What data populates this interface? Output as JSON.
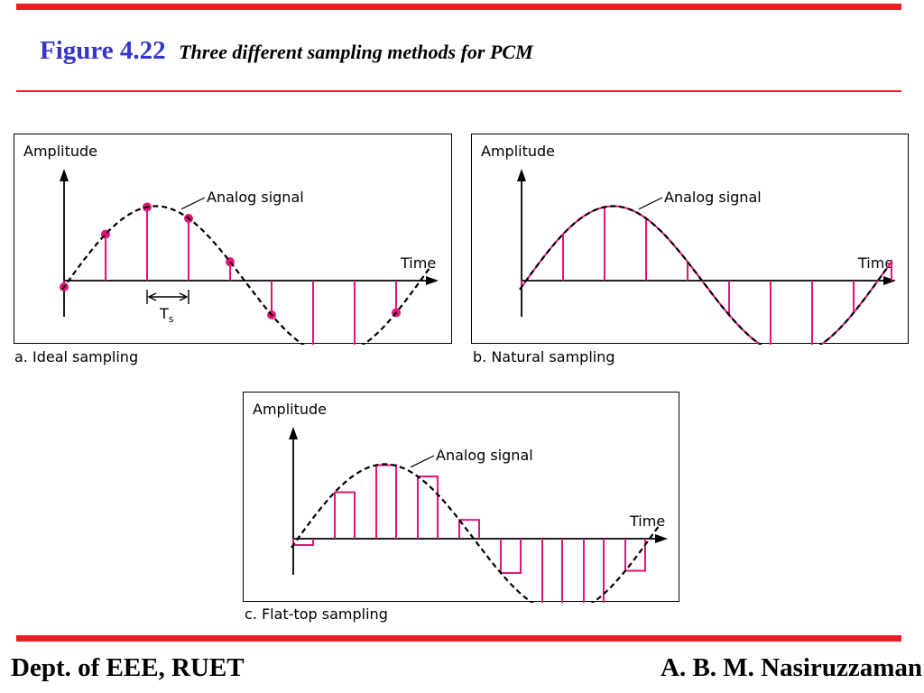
{
  "slide": {
    "figure_number": "Figure 4.22",
    "figure_caption": "Three different sampling methods for PCM",
    "footer_left": "Dept. of EEE, RUET",
    "footer_right": "A. B. M. Nasiruzzaman"
  },
  "colors": {
    "rule": "#ee1c24",
    "figure_number": "#3535c8",
    "sample": "#e4137a",
    "axis": "#000000"
  },
  "panels": [
    {
      "id": "ideal",
      "caption": "a. Ideal sampling",
      "y_label": "Amplitude",
      "x_label": "Time",
      "signal_label": "Analog signal",
      "period_label": "T",
      "period_subscript": "s",
      "style": "ideal"
    },
    {
      "id": "natural",
      "caption": "b. Natural sampling",
      "y_label": "Amplitude",
      "x_label": "Time",
      "signal_label": "Analog signal",
      "style": "natural"
    },
    {
      "id": "flat",
      "caption": "c. Flat-top sampling",
      "y_label": "Amplitude",
      "x_label": "Time",
      "signal_label": "Analog signal",
      "style": "flat"
    }
  ]
}
